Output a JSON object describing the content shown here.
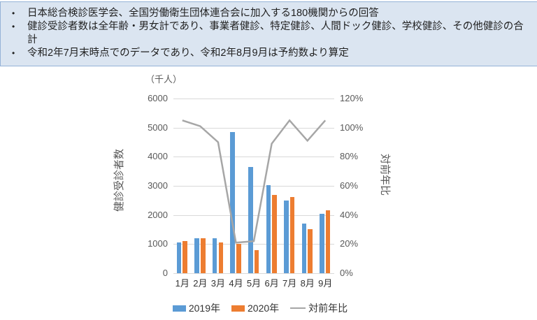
{
  "notes_box": {
    "bullet_char": "•",
    "bullets": [
      "日本総合検診医学会、全国労働衛生団体連合会に加入する180機関からの回答",
      "健診受診者数は全年齢・男女計であり、事業者健診、特定健診、人間ドック健診、学校健診、その他健診の合計",
      "令和2年7月末時点でのデータであり、令和2年8月9月は予約数より算定"
    ],
    "bg_color": "#dbe5f1",
    "border_color": "#95b3d7"
  },
  "chart_data": {
    "type": "bar",
    "subtype": "grouped bars with overlaid line on secondary axis",
    "unit_label": "（千人）",
    "categories": [
      "1月",
      "2月",
      "3月",
      "4月",
      "5月",
      "6月",
      "7月",
      "8月",
      "9月"
    ],
    "series": [
      {
        "name": "2019年",
        "type": "bar",
        "axis": "left",
        "color": "#5b9bd5",
        "values": [
          1060,
          1200,
          1190,
          4850,
          3650,
          3020,
          2500,
          1700,
          2050
        ]
      },
      {
        "name": "2020年",
        "type": "bar",
        "axis": "left",
        "color": "#ed7d31",
        "values": [
          1110,
          1210,
          1050,
          1000,
          800,
          2700,
          2620,
          1520,
          2150
        ]
      },
      {
        "name": "対前年比",
        "type": "line",
        "axis": "right",
        "color": "#a6a6a6",
        "values": [
          105,
          101,
          90,
          21,
          22,
          89,
          105,
          91,
          105
        ]
      }
    ],
    "left_axis": {
      "label": "健診受診者数",
      "min": 0,
      "max": 6000,
      "step": 1000,
      "ticks": [
        "6000",
        "5000",
        "4000",
        "3000",
        "2000",
        "1000",
        "0"
      ]
    },
    "right_axis": {
      "label": "対前年比",
      "min": 0,
      "max": 120,
      "step": 20,
      "unit": "%",
      "ticks": [
        "120%",
        "100%",
        "80%",
        "60%",
        "40%",
        "20%",
        "0%"
      ]
    },
    "legend": [
      {
        "label": "2019年",
        "marker": "bar-swatch",
        "color": "#5b9bd5"
      },
      {
        "label": "2020年",
        "marker": "bar-swatch",
        "color": "#ed7d31"
      },
      {
        "label": "対前年比",
        "marker": "line-swatch",
        "color": "#a6a6a6"
      }
    ],
    "grid": true,
    "gridline_color": "#d9d9d9"
  }
}
